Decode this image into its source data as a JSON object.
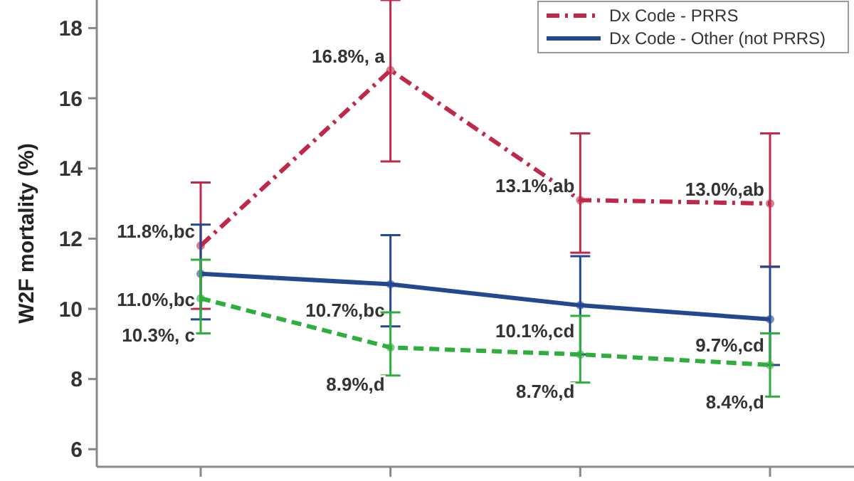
{
  "chart_data": {
    "type": "line",
    "ylabel": "W2F mortality (%)",
    "categories": [
      null,
      null,
      null,
      null
    ],
    "ylim": [
      5.5,
      18.8
    ],
    "yticks": [
      6,
      8,
      10,
      12,
      14,
      16,
      18
    ],
    "grid": false,
    "legend": "top right",
    "marker": "circle",
    "series": [
      {
        "name": "Dx Code - PRRS",
        "color": "#c0284a",
        "line_style": "dashdot",
        "values": [
          11.8,
          16.8,
          13.1,
          13.0
        ],
        "errors": [
          [
            10.0,
            13.6
          ],
          [
            14.2,
            18.8
          ],
          [
            11.6,
            15.0
          ],
          [
            11.2,
            15.0
          ]
        ],
        "value_labels": [
          "11.8%,bc",
          "16.8%, a",
          "13.1%,ab",
          "13.0%,ab"
        ]
      },
      {
        "name": "Dx Code - Other (not PRRS)",
        "color": "#24488f",
        "line_style": "solid",
        "values": [
          11.0,
          10.7,
          10.1,
          9.7
        ],
        "errors": [
          [
            9.7,
            12.4
          ],
          [
            9.5,
            12.1
          ],
          [
            8.7,
            11.5
          ],
          [
            8.4,
            11.2
          ]
        ],
        "value_labels": [
          "11.0%,bc",
          "10.7%,bc",
          "10.1%,cd",
          "9.7%,cd"
        ]
      },
      {
        "color": "#2eae3c",
        "line_style": "dashed",
        "values": [
          10.3,
          8.9,
          8.7,
          8.4
        ],
        "errors": [
          [
            9.3,
            11.4
          ],
          [
            8.1,
            9.9
          ],
          [
            7.9,
            9.8
          ],
          [
            7.5,
            9.3
          ]
        ],
        "value_labels": [
          "10.3%, c",
          "8.9%,d",
          "8.7%,d",
          "8.4%,d"
        ]
      }
    ]
  }
}
